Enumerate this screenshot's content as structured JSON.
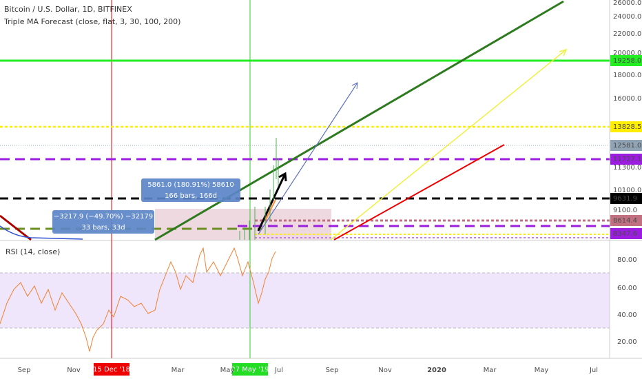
{
  "header": {
    "title": "Bitcoin / U.S. Dollar, 1D, BITFINEX",
    "indicator": "Triple MA Forecast (close, flat, 3, 30, 100, 200)"
  },
  "price_axis": {
    "ticks": [
      "26000.0",
      "24000.0",
      "22000.0",
      "20000.0",
      "18000.0",
      "16000.0",
      "11300.0",
      "10100.0",
      "9100.0"
    ]
  },
  "price_levels": [
    "19258.0",
    "13828.5",
    "12581.0",
    "11727.1",
    "9631.9",
    "8614.4",
    "8347.6"
  ],
  "measures": [
    {
      "change": "5861.0 (180.91%) 58610",
      "span": "166 bars, 166d"
    },
    {
      "change": "−3217.9 (−49.70%) −32179",
      "span": "33 bars, 33d"
    }
  ],
  "rsi": {
    "title": "RSI (14, close)",
    "ticks": [
      "80.00",
      "60.00",
      "40.00",
      "20.00"
    ]
  },
  "time_axis": {
    "ticks": [
      "Sep",
      "Nov",
      "Mar",
      "May",
      "Jul",
      "Sep",
      "Nov",
      "2020",
      "Mar",
      "May",
      "Jul"
    ],
    "markers": [
      "15 Dec '18",
      "27 May '19"
    ]
  }
}
